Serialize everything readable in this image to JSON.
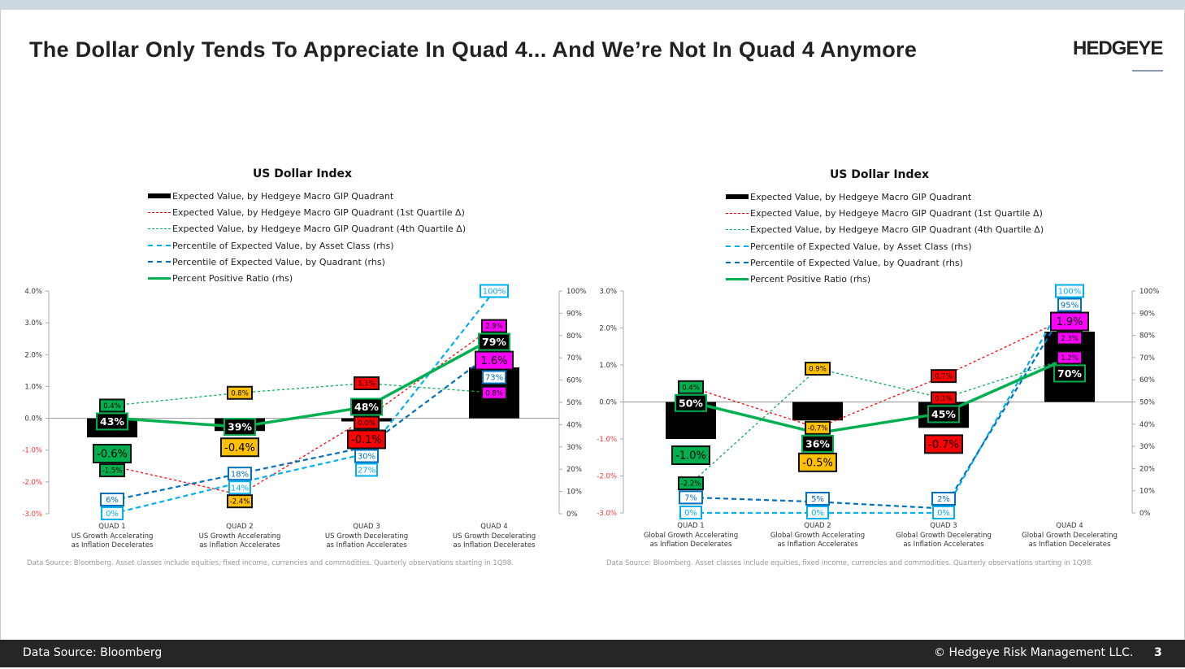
{
  "header": {
    "title": "The Dollar Only Tends To Appreciate In Quad 4... And We’re Not In Quad 4 Anymore",
    "logo": "HEDGEYE"
  },
  "legend": [
    "Expected Value, by Hedgeye Macro GIP Quadrant",
    "Expected Value, by Hedgeye Macro GIP Quadrant (1st Quartile Δ)",
    "Expected Value, by Hedgeye Macro GIP Quadrant (4th Quartile Δ)",
    "Percentile of Expected Value, by Asset Class (rhs)",
    "Percentile of Expected Value, by Quadrant (rhs)",
    "Percent Positive Ratio (rhs)"
  ],
  "colors": {
    "bar": "#000000",
    "q1_quartile": "#ff0000",
    "q4_quartile": "#00b050",
    "asset_class": "#00b0f0",
    "quadrant": "#0070c0",
    "positive": "#00b050",
    "quad_colors": [
      "#00b050",
      "#ffc000",
      "#ff0000",
      "#ff00ff"
    ]
  },
  "footer": {
    "source": "Data Source: Bloomberg",
    "copyright": "© Hedgeye Risk Management LLC.",
    "page": "3"
  },
  "chart_data": [
    {
      "type": "bar+line",
      "title": "US Dollar Index",
      "categories": [
        "QUAD 1",
        "QUAD 2",
        "QUAD 3",
        "QUAD 4"
      ],
      "category_desc": [
        [
          "US Growth Accelerating",
          "as Inflation Decelerates"
        ],
        [
          "US Growth Accelerating",
          "as Inflation Accelerates"
        ],
        [
          "US Growth Decelerating",
          "as Inflation Accelerates"
        ],
        [
          "US Growth Decelerating",
          "as Inflation Decelerates"
        ]
      ],
      "ylim": [
        -3,
        4
      ],
      "yticks": [
        "-3.0%",
        "-2.0%",
        "-1.0%",
        "0.0%",
        "1.0%",
        "2.0%",
        "3.0%",
        "4.0%"
      ],
      "y2lim": [
        0,
        100
      ],
      "y2ticks": [
        "0%",
        "10%",
        "20%",
        "30%",
        "40%",
        "50%",
        "60%",
        "70%",
        "80%",
        "90%",
        "100%"
      ],
      "expected_value": [
        -0.6,
        -0.4,
        -0.1,
        1.6
      ],
      "quartile1": [
        -1.5,
        -2.4,
        0.0,
        2.9
      ],
      "quartile4": [
        0.4,
        0.8,
        1.1,
        0.8
      ],
      "pct_asset_class": [
        0,
        14,
        27,
        100
      ],
      "pct_quadrant": [
        6,
        18,
        30,
        73
      ],
      "pct_positive": [
        43,
        39,
        48,
        79
      ],
      "note": "Data Source: Bloomberg. Asset classes include equities, fixed income, currencies and commodities. Quarterly observations starting in 1Q98."
    },
    {
      "type": "bar+line",
      "title": "US Dollar Index",
      "categories": [
        "QUAD 1",
        "QUAD 2",
        "QUAD 3",
        "QUAD 4"
      ],
      "category_desc": [
        [
          "Global Growth Accelerating",
          "as Inflation Decelerates"
        ],
        [
          "Global Growth Accelerating",
          "as Inflation Accelerates"
        ],
        [
          "Global Growth Decelerating",
          "as Inflation Accelerates"
        ],
        [
          "Global Growth Decelerating",
          "as Inflation Decelerates"
        ]
      ],
      "ylim": [
        -3,
        3
      ],
      "yticks": [
        "-3.0%",
        "-2.0%",
        "-1.0%",
        "0.0%",
        "1.0%",
        "2.0%",
        "3.0%"
      ],
      "y2lim": [
        0,
        100
      ],
      "y2ticks": [
        "0%",
        "10%",
        "20%",
        "30%",
        "40%",
        "50%",
        "60%",
        "70%",
        "80%",
        "90%",
        "100%"
      ],
      "expected_value": [
        -1.0,
        -0.5,
        -0.7,
        1.9
      ],
      "quartile1": [
        0.4,
        -0.7,
        0.7,
        2.3
      ],
      "quartile4": [
        -2.2,
        0.9,
        0.1,
        1.2
      ],
      "pct_asset_class": [
        0,
        0,
        0,
        100
      ],
      "pct_quadrant": [
        7,
        5,
        2,
        95
      ],
      "pct_positive": [
        50,
        36,
        45,
        70
      ],
      "note": "Data Source: Bloomberg. Asset classes include equities, fixed income, currencies and commodities. Quarterly observations starting in 1Q98."
    }
  ]
}
